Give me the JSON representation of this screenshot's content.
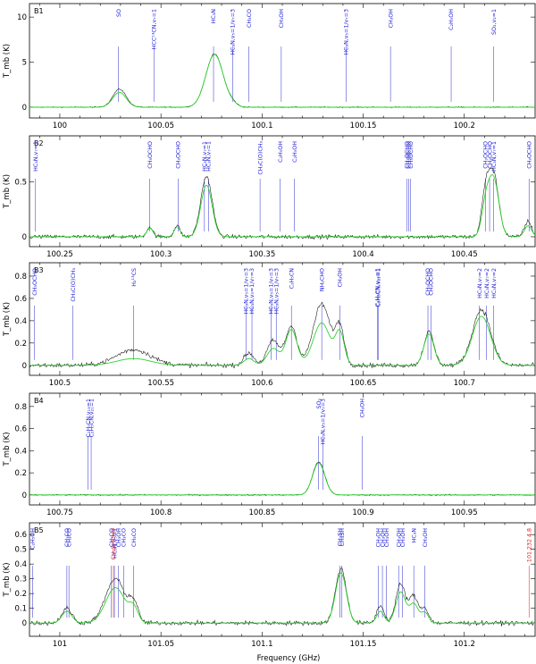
{
  "figure": {
    "xlabel": "Frequency (GHz)",
    "ylabel": "T_mb (K)",
    "colors": {
      "observed": "#111111",
      "model": "#22d322",
      "label_blue": "#1a1ad6",
      "label_red": "#e01818",
      "marker_blue": "#2b2bd0",
      "marker_red": "#e01818"
    }
  },
  "chart_data": [
    {
      "type": "line",
      "panel_id": "B1",
      "xlim": [
        99.985,
        100.235
      ],
      "ylim": [
        -1.2,
        11.5
      ],
      "xticks": [
        100,
        100.05,
        100.1,
        100.15,
        100.2
      ],
      "xtick_labels": [
        "100",
        "100.05",
        "100.1",
        "100.15",
        "100.2"
      ],
      "yticks": [
        0,
        5,
        10
      ],
      "ytick_labels": [
        "0",
        "5",
        "10"
      ],
      "noise": 0.06,
      "lines": [
        {
          "label": "SO",
          "x": 100.029,
          "color": "blue"
        },
        {
          "label": "HCC¹³CN,v₇=1",
          "x": 100.0465,
          "color": "blue"
        },
        {
          "label": "HC₃N",
          "x": 100.076,
          "color": "blue"
        },
        {
          "label": "HC₃N,v₅=1/v₇=3",
          "x": 100.0855,
          "color": "blue"
        },
        {
          "label": "CH₃CO",
          "x": 100.0935,
          "color": "blue"
        },
        {
          "label": "CH₃OH",
          "x": 100.1095,
          "color": "blue"
        },
        {
          "label": "HC₃N,v₅=1/v₇=3",
          "x": 100.1415,
          "color": "blue"
        },
        {
          "label": "CH₃OH",
          "x": 100.1635,
          "color": "blue"
        },
        {
          "label": "C₂H₅OH",
          "x": 100.1935,
          "color": "blue"
        },
        {
          "label": "SO₂,v₂=1",
          "x": 100.2145,
          "color": "blue"
        }
      ],
      "peaks": [
        {
          "x": 100.0295,
          "obs": 2.0,
          "model": 1.65,
          "w": 0.0033
        },
        {
          "x": 100.0765,
          "obs": 5.9,
          "model": 5.85,
          "w": 0.0043
        },
        {
          "x": 100.0855,
          "obs": 0.3,
          "model": 0.25,
          "w": 0.0022
        }
      ]
    },
    {
      "type": "line",
      "panel_id": "B2",
      "xlim": [
        100.235,
        100.485
      ],
      "ylim": [
        -0.09,
        0.92
      ],
      "xticks": [
        100.25,
        100.3,
        100.35,
        100.4,
        100.45
      ],
      "xtick_labels": [
        "100.25",
        "100.3",
        "100.35",
        "100.4",
        "100.45"
      ],
      "yticks": [
        0,
        0.5
      ],
      "ytick_labels": [
        "0",
        "0.5"
      ],
      "noise": 0.018,
      "lines": [
        {
          "label": "HC₃N,v₇=1",
          "x": 100.238,
          "color": "blue"
        },
        {
          "label": "CH₃OCHO",
          "x": 100.2945,
          "color": "blue"
        },
        {
          "label": "CH₃OCHO",
          "x": 100.3085,
          "color": "blue"
        },
        {
          "label": "HC₃N,v₇=1",
          "x": 100.3215,
          "color": "blue"
        },
        {
          "label": "HC₃N,v₇=1",
          "x": 100.3235,
          "color": "blue"
        },
        {
          "label": "CH₃C(O)CH₃",
          "x": 100.349,
          "color": "blue"
        },
        {
          "label": "C₂H₅OH",
          "x": 100.359,
          "color": "blue"
        },
        {
          "label": "C₂H₅OH",
          "x": 100.366,
          "color": "blue"
        },
        {
          "label": "CH₃OCHO",
          "x": 100.4215,
          "color": "blue"
        },
        {
          "label": "CH₃OCHO",
          "x": 100.4225,
          "color": "blue"
        },
        {
          "label": "CH₃OCHO",
          "x": 100.4235,
          "color": "blue"
        },
        {
          "label": "CH₃OCHO",
          "x": 100.4605,
          "color": "blue"
        },
        {
          "label": "CH₃OCHO",
          "x": 100.4625,
          "color": "blue"
        },
        {
          "label": "HC₃N,v₇=1",
          "x": 100.4645,
          "color": "blue"
        },
        {
          "label": "CH₃OCHO",
          "x": 100.482,
          "color": "blue"
        }
      ],
      "peaks": [
        {
          "x": 100.2945,
          "obs": 0.09,
          "model": 0.08,
          "w": 0.0015
        },
        {
          "x": 100.308,
          "obs": 0.1,
          "model": 0.09,
          "w": 0.0015
        },
        {
          "x": 100.3225,
          "obs": 0.55,
          "model": 0.47,
          "w": 0.0028
        },
        {
          "x": 100.4605,
          "obs": 0.35,
          "model": 0.25,
          "w": 0.002
        },
        {
          "x": 100.4645,
          "obs": 0.55,
          "model": 0.52,
          "w": 0.0026
        },
        {
          "x": 100.4815,
          "obs": 0.14,
          "model": 0.1,
          "w": 0.0018
        }
      ]
    },
    {
      "type": "line",
      "panel_id": "B3",
      "xlim": [
        100.485,
        100.735
      ],
      "ylim": [
        -0.09,
        0.92
      ],
      "xticks": [
        100.5,
        100.55,
        100.6,
        100.65,
        100.7
      ],
      "xtick_labels": [
        "100.5",
        "100.55",
        "100.6",
        "100.65",
        "100.7"
      ],
      "yticks": [
        0,
        0.2,
        0.4,
        0.6,
        0.8
      ],
      "ytick_labels": [
        "0",
        "0.2",
        "0.4",
        "0.6",
        "0.8"
      ],
      "noise": 0.02,
      "lines": [
        {
          "label": "CH₃OCHO",
          "x": 100.4875,
          "color": "blue"
        },
        {
          "label": "CH₃C(O)CH₃",
          "x": 100.5065,
          "color": "blue"
        },
        {
          "label": "H₂¹³CS",
          "x": 100.5365,
          "color": "blue"
        },
        {
          "label": "HC₃N,v₅=1/v₇=3",
          "x": 100.592,
          "color": "blue"
        },
        {
          "label": "HC₃N,v₅=1/v₇=3",
          "x": 100.595,
          "color": "blue"
        },
        {
          "label": "HC₃N,v₅=1/v₇=3",
          "x": 100.6045,
          "color": "blue"
        },
        {
          "label": "HC₃N,v₅=1/v₇=3",
          "x": 100.607,
          "color": "blue"
        },
        {
          "label": "C₂H₅CN",
          "x": 100.6145,
          "color": "blue"
        },
        {
          "label": "NH₂CHO",
          "x": 100.6295,
          "color": "blue"
        },
        {
          "label": "CH₃OH",
          "x": 100.6385,
          "color": "blue"
        },
        {
          "label": "C₂H₅CN,v₁₃=1",
          "x": 100.657,
          "color": "blue"
        },
        {
          "label": "C₂H₅CN,v₂₁=1",
          "x": 100.6575,
          "color": "blue"
        },
        {
          "label": "CH₃OCHO",
          "x": 100.682,
          "color": "blue"
        },
        {
          "label": "CH₃OCHO",
          "x": 100.6835,
          "color": "blue"
        },
        {
          "label": "HC₃N,v₇=2",
          "x": 100.7075,
          "color": "blue"
        },
        {
          "label": "HC₃N,v₇=2",
          "x": 100.711,
          "color": "blue"
        },
        {
          "label": "HC₃N,v₇=2",
          "x": 100.7145,
          "color": "blue"
        }
      ],
      "peaks": [
        {
          "x": 100.5365,
          "obs": 0.14,
          "model": 0.06,
          "w": 0.0085
        },
        {
          "x": 100.5935,
          "obs": 0.11,
          "model": 0.06,
          "w": 0.0025
        },
        {
          "x": 100.6055,
          "obs": 0.22,
          "model": 0.15,
          "w": 0.003
        },
        {
          "x": 100.6145,
          "obs": 0.35,
          "model": 0.32,
          "w": 0.0028
        },
        {
          "x": 100.6295,
          "obs": 0.55,
          "model": 0.38,
          "w": 0.0042
        },
        {
          "x": 100.6385,
          "obs": 0.33,
          "model": 0.28,
          "w": 0.0022
        },
        {
          "x": 100.6825,
          "obs": 0.3,
          "model": 0.28,
          "w": 0.0025
        },
        {
          "x": 100.7085,
          "obs": 0.5,
          "model": 0.44,
          "w": 0.0045
        }
      ]
    },
    {
      "type": "line",
      "panel_id": "B4",
      "xlim": [
        100.735,
        100.985
      ],
      "ylim": [
        -0.09,
        0.92
      ],
      "xticks": [
        100.75,
        100.8,
        100.85,
        100.9,
        100.95
      ],
      "xtick_labels": [
        "100.75",
        "100.8",
        "100.85",
        "100.9",
        "100.95"
      ],
      "yticks": [
        0,
        0.2,
        0.4,
        0.6,
        0.8
      ],
      "ytick_labels": [
        "0",
        "0.2",
        "0.4",
        "0.6",
        "0.8"
      ],
      "noise": 0.006,
      "lines": [
        {
          "label": "C₂H₅CN,v₁₃=1",
          "x": 100.764,
          "color": "blue"
        },
        {
          "label": "C₂H₅CN,v₂₁=1",
          "x": 100.7655,
          "color": "blue"
        },
        {
          "label": "SO₂",
          "x": 100.878,
          "color": "blue"
        },
        {
          "label": "HC₃N,v₅=1/v₇=3",
          "x": 100.88,
          "color": "blue"
        },
        {
          "label": "CH₃OH",
          "x": 100.8995,
          "color": "blue"
        }
      ],
      "peaks": [
        {
          "x": 100.878,
          "obs": 0.3,
          "model": 0.29,
          "w": 0.003
        }
      ]
    },
    {
      "type": "line",
      "panel_id": "B5",
      "xlim": [
        100.985,
        101.235
      ],
      "ylim": [
        -0.09,
        0.68
      ],
      "xticks": [
        101,
        101.05,
        101.1,
        101.15,
        101.2
      ],
      "xtick_labels": [
        "101",
        "101.05",
        "101.1",
        "101.15",
        "101.2"
      ],
      "yticks": [
        0,
        0.1,
        0.2,
        0.3,
        0.4,
        0.5,
        0.6
      ],
      "ytick_labels": [
        "0",
        "0.1",
        "0.2",
        "0.3",
        "0.4",
        "0.5",
        "0.6"
      ],
      "noise": 0.015,
      "lines": [
        {
          "label": "C₂H₅OH",
          "x": 100.9865,
          "color": "blue"
        },
        {
          "label": "CH₃CO",
          "x": 101.0035,
          "color": "blue"
        },
        {
          "label": "CH₃CO",
          "x": 101.0045,
          "color": "blue"
        },
        {
          "label": "CH₃CO",
          "x": 101.0255,
          "color": "blue"
        },
        {
          "label": "CH₂OHCHO",
          "x": 101.0265,
          "color": "red"
        },
        {
          "label": "HC₃N,v₅=1",
          "x": 101.027,
          "color": "blue"
        },
        {
          "label": "CH₃OH",
          "x": 101.029,
          "color": "blue"
        },
        {
          "label": "CH₃CO",
          "x": 101.0315,
          "color": "blue"
        },
        {
          "label": "CH₃CO",
          "x": 101.0365,
          "color": "blue"
        },
        {
          "label": "CH₃SH",
          "x": 101.1385,
          "color": "blue"
        },
        {
          "label": "CH₃SH",
          "x": 101.1395,
          "color": "blue"
        },
        {
          "label": "CH₃OH",
          "x": 101.1575,
          "color": "blue"
        },
        {
          "label": "CH₃OH",
          "x": 101.1595,
          "color": "blue"
        },
        {
          "label": "CH₃OH",
          "x": 101.1615,
          "color": "blue"
        },
        {
          "label": "CH₃OH",
          "x": 101.1675,
          "color": "blue"
        },
        {
          "label": "CH₃OH",
          "x": 101.1695,
          "color": "blue"
        },
        {
          "label": "HC₃N",
          "x": 101.175,
          "color": "blue"
        },
        {
          "label": "CH₃OH",
          "x": 101.1805,
          "color": "blue"
        },
        {
          "label": "101.232 4.8",
          "x": 101.232,
          "color": "red"
        }
      ],
      "peaks": [
        {
          "x": 101.0035,
          "obs": 0.1,
          "model": 0.08,
          "w": 0.0025
        },
        {
          "x": 101.0275,
          "obs": 0.3,
          "model": 0.24,
          "w": 0.0048
        },
        {
          "x": 101.0365,
          "obs": 0.12,
          "model": 0.09,
          "w": 0.0022
        },
        {
          "x": 101.139,
          "obs": 0.37,
          "model": 0.34,
          "w": 0.0027
        },
        {
          "x": 101.1585,
          "obs": 0.12,
          "model": 0.08,
          "w": 0.0018
        },
        {
          "x": 101.1685,
          "obs": 0.26,
          "model": 0.21,
          "w": 0.0024
        },
        {
          "x": 101.175,
          "obs": 0.18,
          "model": 0.13,
          "w": 0.0022
        },
        {
          "x": 101.1805,
          "obs": 0.1,
          "model": 0.07,
          "w": 0.0018
        }
      ]
    }
  ]
}
